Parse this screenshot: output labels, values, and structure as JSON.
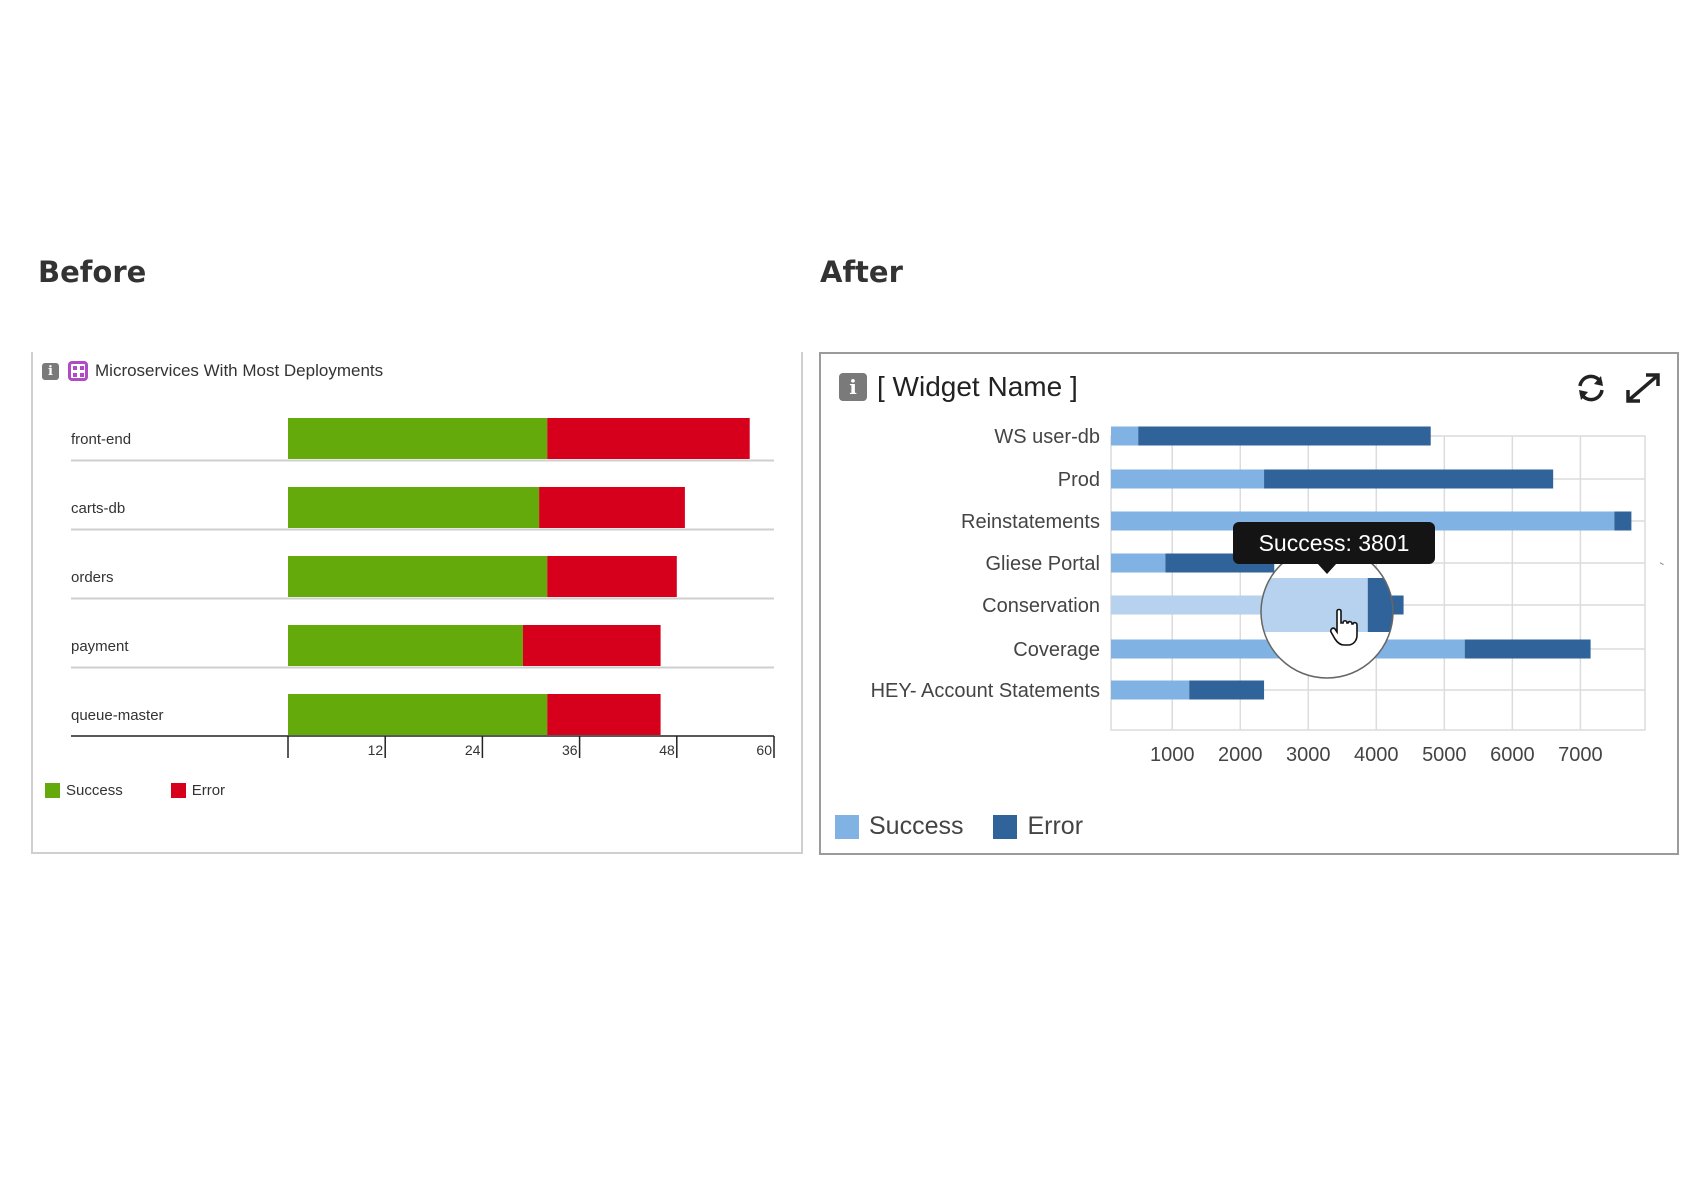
{
  "headings": {
    "before": "Before",
    "after": "After"
  },
  "before_widget": {
    "title": "Microservices With Most Deployments",
    "info_icon": "i",
    "legend": [
      {
        "label": "Success",
        "color": "#63aa0a"
      },
      {
        "label": "Error",
        "color": "#d6001c"
      }
    ]
  },
  "after_widget": {
    "title": "[ Widget Name ]",
    "info_icon": "i",
    "legend": [
      {
        "label": "Success",
        "color": "#80b2e3"
      },
      {
        "label": "Error",
        "color": "#2f6399"
      }
    ],
    "tooltip": "Success: 3801"
  },
  "chart_data": [
    {
      "type": "bar",
      "orientation": "horizontal",
      "stacked": true,
      "title": "Microservices With Most Deployments",
      "categories": [
        "front-end",
        "carts-db",
        "orders",
        "payment",
        "queue-master"
      ],
      "series": [
        {
          "name": "Success",
          "color": "#63aa0a",
          "values": [
            32,
            31,
            32,
            29,
            32
          ]
        },
        {
          "name": "Error",
          "color": "#d6001c",
          "values": [
            25,
            18,
            16,
            17,
            14
          ]
        }
      ],
      "xlim": [
        0,
        60
      ],
      "xticks": [
        12,
        24,
        36,
        48,
        60
      ],
      "grid": false,
      "legend": "bottom-left"
    },
    {
      "type": "bar",
      "orientation": "horizontal",
      "stacked": true,
      "title": "[ Widget Name ]",
      "categories": [
        "WS user-db",
        "Prod",
        "Reinstatements",
        "Gliese Portal",
        "Conservation",
        "Coverage",
        "HEY- Account Statements"
      ],
      "series": [
        {
          "name": "Success",
          "color": "#80b2e3",
          "values": [
            400,
            2250,
            7400,
            800,
            3801,
            5200,
            1150
          ]
        },
        {
          "name": "Error",
          "color": "#2f6399",
          "values": [
            4300,
            4250,
            250,
            1600,
            500,
            1850,
            1100
          ]
        }
      ],
      "xlim": [
        100,
        7950
      ],
      "xticks": [
        1000,
        2000,
        3000,
        4000,
        5000,
        6000,
        7000
      ],
      "grid": true,
      "legend": "bottom-left",
      "highlighted": {
        "category": "Conservation",
        "series": "Success",
        "value": 3801
      }
    }
  ]
}
